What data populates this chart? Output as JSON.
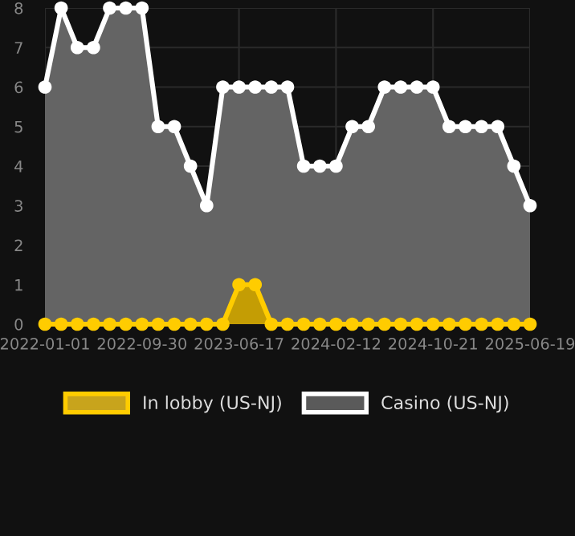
{
  "chart_data": {
    "type": "area",
    "categories": [
      "2022-01-01",
      null,
      null,
      null,
      null,
      null,
      "2022-09-30",
      null,
      null,
      null,
      null,
      null,
      "2023-06-17",
      null,
      null,
      null,
      null,
      null,
      "2024-02-12",
      null,
      null,
      null,
      null,
      null,
      "2024-10-21",
      null,
      null,
      null,
      null,
      null,
      "2025-06-19"
    ],
    "series": [
      {
        "name": "In lobby (US-NJ)",
        "color": "#ffcc00",
        "values": [
          0,
          0,
          0,
          0,
          0,
          0,
          0,
          0,
          0,
          0,
          0,
          0,
          1,
          1,
          0,
          0,
          0,
          0,
          0,
          0,
          0,
          0,
          0,
          0,
          0,
          0,
          0,
          0,
          0,
          0,
          0
        ]
      },
      {
        "name": "Casino (US-NJ)",
        "color": "#ffffff",
        "values": [
          6,
          8,
          7,
          7,
          8,
          8,
          8,
          5,
          5,
          4,
          3,
          6,
          6,
          6,
          6,
          6,
          4,
          4,
          4,
          5,
          5,
          6,
          6,
          6,
          6,
          5,
          5,
          5,
          5,
          4,
          3
        ]
      }
    ],
    "ylim": [
      0,
      8
    ],
    "yticks": [
      0,
      1,
      2,
      3,
      4,
      5,
      6,
      7,
      8
    ],
    "grid": true,
    "legend": "bottom",
    "marker": "circle"
  }
}
